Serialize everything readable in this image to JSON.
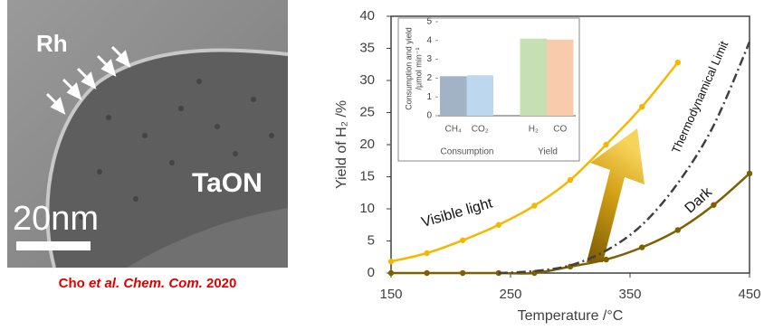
{
  "image": {
    "labels": {
      "metal": "Rh",
      "support": "TaON",
      "scale": "20nm"
    }
  },
  "caption": {
    "author": "Cho",
    "etal": "et al.",
    "journal": "Chem. Com.",
    "year": "2020"
  },
  "chart_data": [
    {
      "type": "line",
      "x_label": "Temperature /°C",
      "y_label": "Yield of H₂ /%",
      "xlim": [
        150,
        450
      ],
      "xticks": [
        150,
        250,
        350,
        450
      ],
      "ylim": [
        0,
        40
      ],
      "yticks": [
        0,
        5,
        10,
        15,
        20,
        25,
        30,
        35,
        40
      ],
      "series": [
        {
          "name": "Visible light",
          "color": "#f5b800",
          "style": "solid",
          "markers": true,
          "x": [
            150,
            180,
            210,
            240,
            270,
            300,
            330,
            360,
            390
          ],
          "values": [
            1.8,
            3.1,
            5.1,
            7.5,
            10.5,
            14.5,
            20,
            25.9,
            32.8
          ]
        },
        {
          "name": "Dark",
          "color": "#7f6000",
          "style": "solid",
          "markers": true,
          "x": [
            150,
            180,
            210,
            240,
            270,
            300,
            330,
            360,
            390,
            420,
            450
          ],
          "values": [
            0,
            0,
            0,
            0,
            0,
            1,
            2.1,
            4,
            6.7,
            10.6,
            15.5
          ]
        },
        {
          "name": "Thermodynamical Limit",
          "color": "#404040",
          "style": "dashdot",
          "markers": false,
          "x": [
            240,
            270,
            300,
            330,
            360,
            390,
            420,
            450
          ],
          "values": [
            0,
            0.3,
            1.2,
            3.5,
            7.5,
            14,
            23,
            36
          ]
        }
      ]
    },
    {
      "type": "bar",
      "y_label": [
        "Consumption and yield",
        "/μmol min⁻¹"
      ],
      "categories": [
        "CH₄",
        "CO₂",
        null,
        "H₂",
        "CO"
      ],
      "values": [
        2.1,
        2.15,
        null,
        4.1,
        4.05
      ],
      "colors": [
        "#a3b3c6",
        "#bdd7ee",
        null,
        "#c6e0b4",
        "#f8cbad"
      ],
      "group_labels": [
        "Consumption",
        "Yield"
      ],
      "ylim": [
        0,
        5
      ],
      "yticks": [
        0,
        1,
        2,
        3,
        4,
        5
      ]
    }
  ]
}
